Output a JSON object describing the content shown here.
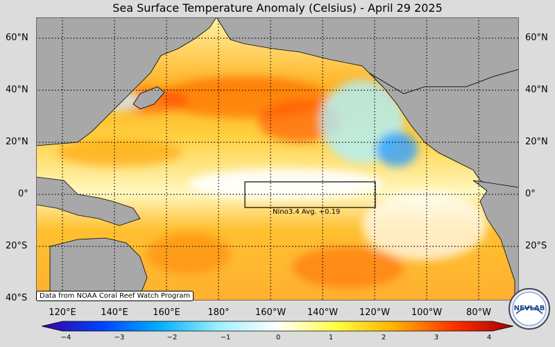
{
  "title": "Sea Surface Temperature Anomaly (Celsius) - April 29 2025",
  "lat_labels": [
    "60°N",
    "40°N",
    "20°N",
    "0°",
    "20°S",
    "40°S"
  ],
  "lon_labels": [
    "120°E",
    "140°E",
    "160°E",
    "180°",
    "160°W",
    "140°W",
    "120°W",
    "100°W",
    "80°W"
  ],
  "credit": "Data from NOAA Coral Reef Watch Program",
  "nino_label": "Nino3.4 Avg. +0.19",
  "colorbar": {
    "ticks": [
      "−4",
      "−3",
      "−2",
      "−1",
      "0",
      "1",
      "2",
      "3",
      "4"
    ],
    "colors": [
      "#3a00a0",
      "#0040ff",
      "#00b0ff",
      "#a0f0ff",
      "#ffffff",
      "#ffff40",
      "#ffb000",
      "#ff3000",
      "#a00000"
    ]
  },
  "logo_text": "NEVLAB",
  "colors": {
    "land": "#a8a8a8",
    "ocean_base": "#ffe060",
    "background": "#dcdcdc"
  }
}
